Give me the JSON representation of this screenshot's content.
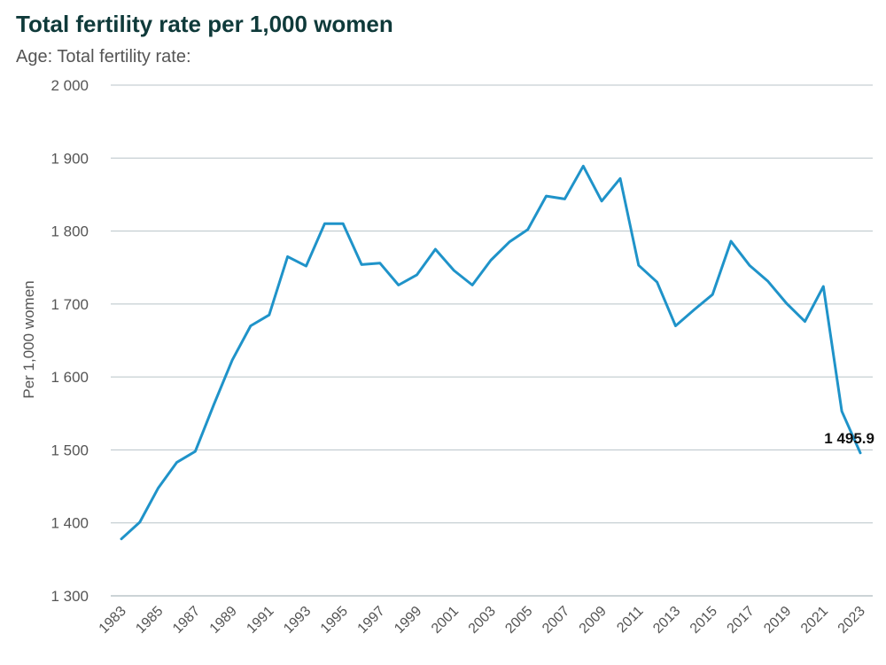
{
  "chart_data": {
    "type": "line",
    "title": "Total fertility rate per 1,000 women",
    "subtitle": "Age: Total fertility rate:",
    "ylabel": "Per 1,000 women",
    "xlabel": "",
    "ylim": [
      1300,
      2000
    ],
    "yticks": [
      1300,
      1400,
      1500,
      1600,
      1700,
      1800,
      1900,
      2000
    ],
    "ytick_labels": [
      "1 300",
      "1 400",
      "1 500",
      "1 600",
      "1 700",
      "1 800",
      "1 900",
      "2 000"
    ],
    "xlim": [
      1983,
      2023
    ],
    "xticks": [
      1983,
      1985,
      1987,
      1989,
      1991,
      1993,
      1995,
      1997,
      1999,
      2001,
      2003,
      2005,
      2007,
      2009,
      2011,
      2013,
      2015,
      2017,
      2019,
      2021,
      2023
    ],
    "grid": true,
    "color": "#1f93c9",
    "series": [
      {
        "name": "Total fertility rate",
        "x": [
          1983,
          1984,
          1985,
          1986,
          1987,
          1988,
          1989,
          1990,
          1991,
          1992,
          1993,
          1994,
          1995,
          1996,
          1997,
          1998,
          1999,
          2000,
          2001,
          2002,
          2003,
          2004,
          2005,
          2006,
          2007,
          2008,
          2009,
          2010,
          2011,
          2012,
          2013,
          2014,
          2015,
          2016,
          2017,
          2018,
          2019,
          2020,
          2021,
          2022,
          2023
        ],
        "values": [
          1378,
          1401,
          1448,
          1483,
          1498,
          1562,
          1623,
          1670,
          1685,
          1765,
          1752,
          1810,
          1810,
          1754,
          1756,
          1726,
          1740,
          1775,
          1746,
          1726,
          1760,
          1785,
          1802,
          1848,
          1844,
          1889,
          1841,
          1872,
          1753,
          1730,
          1670,
          1692,
          1713,
          1786,
          1753,
          1731,
          1701,
          1676,
          1724,
          1553,
          1495.9
        ]
      }
    ],
    "annotation": {
      "x": 2023,
      "label": "1 495.9"
    }
  }
}
